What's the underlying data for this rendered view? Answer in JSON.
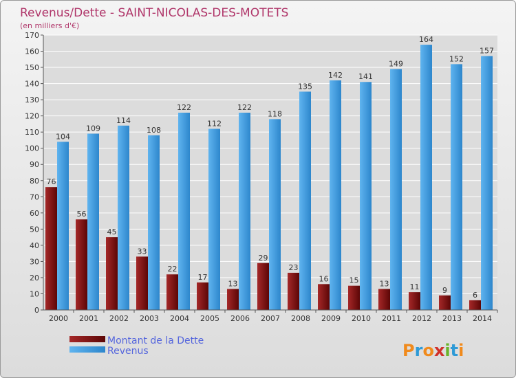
{
  "chart_data": {
    "type": "bar",
    "title": "Revenus/Dette - SAINT-NICOLAS-DES-MOTETS",
    "subtitle": "(en milliers d'€)",
    "categories": [
      "2000",
      "2001",
      "2002",
      "2003",
      "2004",
      "2005",
      "2006",
      "2007",
      "2008",
      "2009",
      "2010",
      "2011",
      "2012",
      "2013",
      "2014"
    ],
    "series": [
      {
        "name": "Montant de la Dette",
        "color": "#7a1010",
        "values": [
          76,
          56,
          45,
          33,
          22,
          17,
          13,
          29,
          23,
          16,
          15,
          13,
          11,
          9,
          6
        ]
      },
      {
        "name": "Revenus",
        "color": "#3d9be0",
        "values": [
          104,
          109,
          114,
          108,
          122,
          112,
          122,
          118,
          135,
          142,
          141,
          149,
          164,
          152,
          157
        ]
      }
    ],
    "ylim": [
      0,
      170
    ],
    "yticks": [
      0,
      10,
      20,
      30,
      40,
      50,
      60,
      70,
      80,
      90,
      100,
      110,
      120,
      130,
      140,
      150,
      160,
      170
    ],
    "grid": true,
    "legend_position": "bottom-left"
  },
  "logo": {
    "text": "Proxiti",
    "letters": [
      "P",
      "r",
      "o",
      "x",
      "i",
      "t",
      "i"
    ],
    "colors": [
      "#f08a1c",
      "#2e9ad6",
      "#f08a1c",
      "#d0302a",
      "#6ab42a",
      "#2e9ad6",
      "#f08a1c"
    ]
  }
}
